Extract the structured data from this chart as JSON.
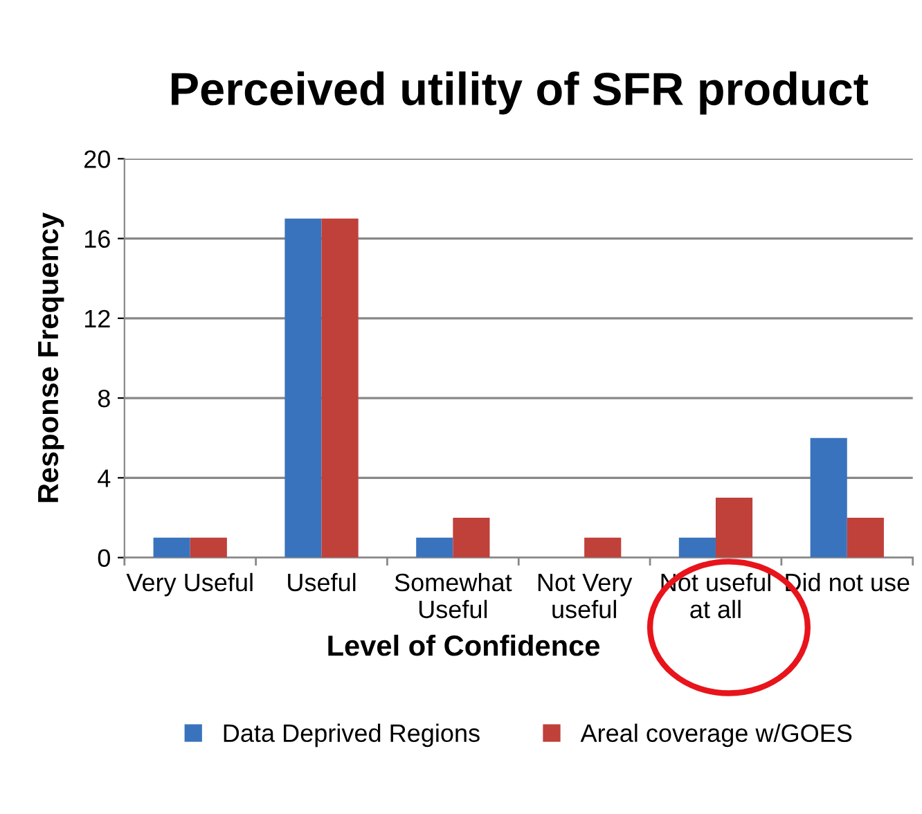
{
  "chart_data": {
    "type": "bar",
    "title": "Perceived utility of SFR product",
    "xlabel": "Level of Confidence",
    "ylabel": "Response Frequency",
    "categories": [
      "Very Useful",
      "Useful",
      "Somewhat\nUseful",
      "Not Very\nuseful",
      "Not useful\nat all",
      "Did not use"
    ],
    "series": [
      {
        "name": "Data Deprived Regions",
        "color": "#3a73bd",
        "values": [
          1,
          17,
          1,
          0,
          1,
          6
        ]
      },
      {
        "name": "Areal coverage w/GOES",
        "color": "#c0403a",
        "values": [
          1,
          17,
          2,
          1,
          3,
          2
        ]
      }
    ],
    "ylim": [
      0,
      20
    ],
    "yticks": [
      0,
      4,
      8,
      12,
      16,
      20
    ],
    "grid": "y",
    "legend": "bottom"
  }
}
